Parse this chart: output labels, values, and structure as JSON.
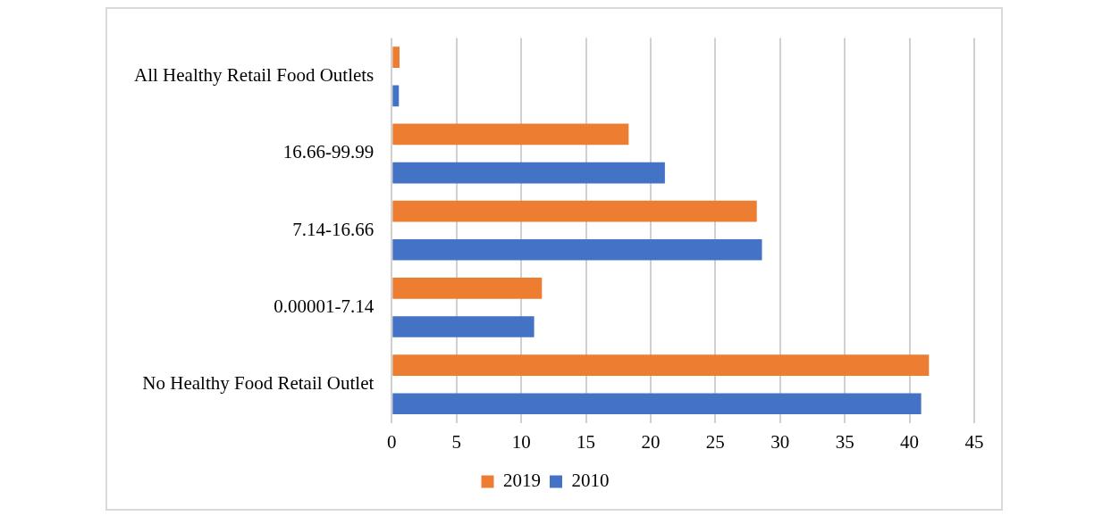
{
  "chart_data": {
    "type": "bar",
    "orientation": "horizontal",
    "categories": [
      "All Healthy Retail Food Outlets",
      "16.66-99.99",
      "7.14-16.66",
      "0.00001-7.14",
      "No Healthy Food Retail Outlet"
    ],
    "series": [
      {
        "name": "2019",
        "color": "#ed7d31",
        "values": [
          0.6,
          18.3,
          28.2,
          11.6,
          41.5
        ]
      },
      {
        "name": "2010",
        "color": "#4472c4",
        "values": [
          0.55,
          21.1,
          28.6,
          11.0,
          40.9
        ]
      }
    ],
    "xlim": [
      0,
      45
    ],
    "xticks": [
      0,
      5,
      10,
      15,
      20,
      25,
      30,
      35,
      40,
      45
    ],
    "grid": "x",
    "legend": "bottom"
  }
}
